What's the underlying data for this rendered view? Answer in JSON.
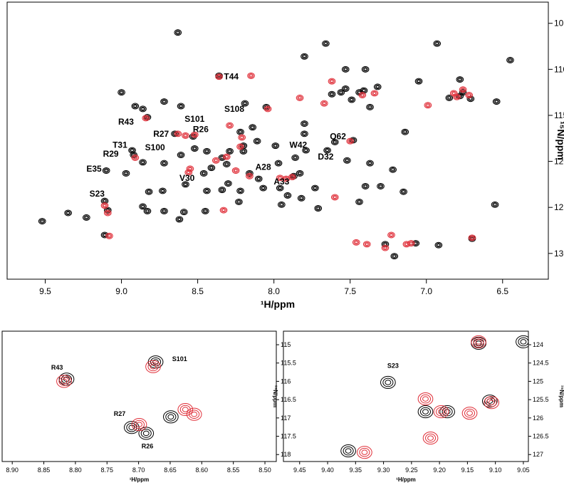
{
  "chart_data": [
    {
      "type": "scatter",
      "x_label": "¹H/ppm",
      "y_label": "¹⁵N/ppm",
      "xlim": [
        9.75,
        6.2
      ],
      "ylim": [
        132.8,
        102.7
      ],
      "xticks": [
        9.5,
        {
          "value": 9,
          "label": "9.0"
        },
        8.5,
        {
          "value": 8,
          "label": "8.0"
        },
        7.5,
        {
          "value": 7,
          "label": "7.0"
        },
        6.5
      ],
      "yticks": [
        105,
        110,
        115,
        120,
        125,
        130
      ],
      "series": [
        {
          "color": "#000000",
          "x": [
            9.52,
            9.35,
            9.23,
            9.11,
            9.11,
            9.09,
            9.1,
            8.97,
            8.93,
            8.92,
            9.0,
            8.91,
            8.86,
            8.83,
            8.86,
            8.82,
            8.86,
            8.83,
            8.72,
            8.63,
            8.72,
            8.73,
            8.72,
            8.65,
            8.61,
            8.61,
            8.58,
            8.59,
            8.62,
            8.53,
            8.52,
            8.44,
            8.46,
            8.44,
            8.45,
            8.36,
            8.41,
            8.34,
            8.31,
            8.3,
            8.34,
            8.29,
            8.2,
            8.22,
            8.16,
            8.22,
            8.23,
            8.14,
            8.11,
            8.19,
            8.2,
            8.05,
            7.99,
            8.1,
            8.07,
            7.97,
            7.96,
            7.95,
            7.91,
            7.87,
            7.86,
            7.83,
            7.82,
            7.79,
            7.8,
            7.8,
            7.8,
            7.73,
            7.71,
            7.65,
            7.6,
            7.66,
            7.62,
            7.53,
            7.56,
            7.49,
            7.53,
            7.44,
            7.52,
            7.48,
            7.4,
            7.41,
            7.37,
            7.44,
            7.37,
            7.4,
            7.3,
            7.22,
            7.15,
            7.27,
            7.21,
            7.32,
            7.14,
            7.07,
            7.05,
            6.93,
            6.92,
            6.85,
            6.78,
            6.76,
            6.71,
            6.7,
            6.55,
            6.54,
            6.45,
            6.78
          ],
          "values": [
            126.5,
            125.6,
            126.1,
            128.0,
            124.3,
            125.3,
            121.0,
            121.3,
            118.8,
            119.3,
            112.5,
            114.0,
            114.3,
            115.2,
            120.1,
            123.3,
            124.9,
            125.4,
            113.5,
            106.0,
            120.2,
            123.2,
            125.4,
            117.0,
            114.0,
            119.3,
            122.5,
            125.5,
            126.3,
            117.3,
            118.6,
            118.9,
            121.3,
            123.2,
            125.4,
            110.7,
            120.7,
            119.6,
            120.3,
            122.4,
            123.1,
            118.9,
            118.3,
            116.8,
            121.3,
            123.2,
            124.4,
            116.3,
            117.8,
            113.7,
            118.9,
            114.1,
            118.3,
            121.9,
            122.9,
            120.2,
            122.9,
            124.7,
            123.7,
            121.6,
            119.6,
            121.3,
            124.0,
            118.8,
            115.9,
            117.0,
            108.6,
            122.9,
            125.1,
            118.8,
            117.9,
            107.2,
            112.7,
            110.0,
            112.5,
            113.3,
            112.1,
            112.5,
            119.9,
            117.7,
            110.0,
            112.3,
            114.1,
            124.4,
            120.2,
            122.7,
            122.7,
            120.9,
            123.3,
            129.0,
            130.3,
            111.9,
            116.8,
            128.9,
            111.3,
            107.2,
            129.1,
            113.1,
            112.9,
            112.5,
            113.2,
            128.4,
            124.7,
            113.5,
            109.0,
            111.1
          ]
        },
        {
          "color": "#e0303a",
          "x": [
            9.11,
            9.09,
            9.08,
            8.91,
            8.84,
            8.63,
            8.58,
            8.52,
            8.56,
            8.55,
            8.33,
            8.36,
            8.38,
            8.31,
            8.29,
            8.22,
            8.21,
            8.25,
            8.16,
            8.04,
            8.15,
            7.96,
            7.92,
            7.88,
            7.83,
            7.67,
            7.62,
            7.6,
            7.5,
            7.42,
            7.46,
            7.39,
            7.23,
            7.13,
            7.1,
            6.99,
            6.8,
            6.76,
            6.82,
            6.72,
            6.7,
            7.34,
            7.27
          ],
          "values": [
            124.8,
            125.6,
            128.1,
            119.6,
            115.3,
            117.0,
            117.2,
            117.1,
            121.2,
            120.8,
            125.3,
            110.8,
            119.9,
            119.5,
            116.1,
            118.4,
            117.4,
            121.0,
            121.6,
            114.3,
            110.7,
            121.8,
            121.9,
            121.7,
            113.1,
            113.7,
            111.3,
            123.9,
            117.8,
            112.8,
            128.8,
            129.0,
            128.0,
            129.0,
            128.9,
            113.9,
            113.0,
            112.2,
            112.6,
            112.8,
            128.3,
            112.6,
            129.4
          ]
        }
      ],
      "annotations": [
        {
          "text": "T44",
          "x": 8.28,
          "y": 110.8
        },
        {
          "text": "S108",
          "x": 8.26,
          "y": 114.3
        },
        {
          "text": "S101",
          "x": 8.52,
          "y": 115.4
        },
        {
          "text": "R43",
          "x": 8.97,
          "y": 115.7
        },
        {
          "text": "R27",
          "x": 8.74,
          "y": 117.0
        },
        {
          "text": "R26",
          "x": 8.48,
          "y": 116.5
        },
        {
          "text": "T31",
          "x": 9.01,
          "y": 118.2
        },
        {
          "text": "S100",
          "x": 8.78,
          "y": 118.5
        },
        {
          "text": "R29",
          "x": 9.07,
          "y": 119.2
        },
        {
          "text": "E35",
          "x": 9.18,
          "y": 120.8
        },
        {
          "text": "V30",
          "x": 8.57,
          "y": 121.8
        },
        {
          "text": "W42",
          "x": 7.84,
          "y": 118.2
        },
        {
          "text": "Q62",
          "x": 7.58,
          "y": 117.3
        },
        {
          "text": "D32",
          "x": 7.66,
          "y": 119.5
        },
        {
          "text": "A28",
          "x": 8.07,
          "y": 120.6
        },
        {
          "text": "A33",
          "x": 7.95,
          "y": 122.2
        },
        {
          "text": "S23",
          "x": 9.16,
          "y": 123.5
        }
      ]
    },
    {
      "type": "scatter",
      "x_label": "¹H/ppm",
      "y_label": "¹⁵N/ppm",
      "xlim": [
        8.916,
        8.482
      ],
      "ylim": [
        118.19,
        114.63
      ],
      "xticks": [
        {
          "value": 8.9,
          "label": "8.90"
        },
        8.85,
        {
          "value": 8.8,
          "label": "8.80"
        },
        8.75,
        {
          "value": 8.7,
          "label": "8.70"
        },
        8.65,
        {
          "value": 8.6,
          "label": "8.60"
        },
        8.55,
        {
          "value": 8.5,
          "label": "8.50"
        }
      ],
      "yticks": [
        115,
        115.5,
        116,
        116.5,
        117,
        117.5,
        118
      ],
      "series": [
        {
          "color": "#000000",
          "x": [
            8.814,
            8.673,
            8.711,
            8.688,
            8.649
          ],
          "values": [
            115.94,
            115.47,
            117.26,
            117.42,
            116.97
          ]
        },
        {
          "color": "#e0303a",
          "x": [
            8.818,
            8.677,
            8.699,
            8.626,
            8.612
          ],
          "values": [
            116.0,
            115.6,
            117.18,
            116.77,
            116.9
          ]
        }
      ],
      "annotations": [
        {
          "text": "R43",
          "x": 8.829,
          "y": 115.6
        },
        {
          "text": "S101",
          "x": 8.635,
          "y": 115.37
        },
        {
          "text": "R27",
          "x": 8.73,
          "y": 116.87
        },
        {
          "text": "R26",
          "x": 8.686,
          "y": 117.75
        }
      ]
    },
    {
      "type": "scatter",
      "x_label": "¹H/ppm",
      "y_label": "¹⁵N/ppm",
      "xlim": [
        9.479,
        9.041
      ],
      "ylim": [
        127.19,
        123.63
      ],
      "xticks": [
        9.45,
        {
          "value": 9.4,
          "label": "9.40"
        },
        9.35,
        {
          "value": 9.3,
          "label": "9.30"
        },
        9.25,
        {
          "value": 9.2,
          "label": "9.20"
        },
        9.15,
        {
          "value": 9.1,
          "label": "9.10"
        },
        9.05
      ],
      "yticks": [
        124,
        124.5,
        125,
        125.5,
        126,
        126.5,
        127
      ],
      "series": [
        {
          "color": "#000000",
          "x": [
            9.292,
            9.225,
            9.186,
            9.13,
            9.05,
            9.11,
            9.363
          ],
          "values": [
            125.03,
            125.83,
            125.83,
            123.96,
            123.92,
            125.54,
            126.9
          ]
        },
        {
          "color": "#e0303a",
          "x": [
            9.225,
            9.197,
            9.146,
            9.107,
            9.13,
            9.334,
            9.216
          ],
          "values": [
            125.48,
            125.83,
            125.87,
            125.58,
            123.92,
            126.94,
            126.55
          ]
        }
      ],
      "annotations": [
        {
          "text": "S23",
          "x": 9.283,
          "y": 124.55
        }
      ]
    }
  ]
}
